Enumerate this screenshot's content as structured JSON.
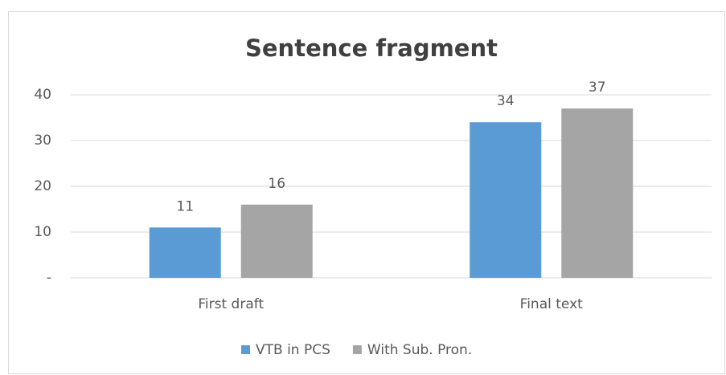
{
  "chart_data": {
    "type": "bar",
    "title": "Sentence fragment",
    "categories": [
      "First draft",
      "Final text"
    ],
    "series": [
      {
        "name": "VTB in PCS",
        "color": "#5b9bd5",
        "values": [
          11,
          34
        ]
      },
      {
        "name": "With Sub. Pron.",
        "color": "#a5a5a5",
        "values": [
          16,
          37
        ]
      }
    ],
    "ylim": [
      0,
      40
    ],
    "yticks": [
      {
        "value": 0,
        "label": "-"
      },
      10,
      20,
      30,
      40
    ],
    "grid": true,
    "legend": "bottom"
  }
}
